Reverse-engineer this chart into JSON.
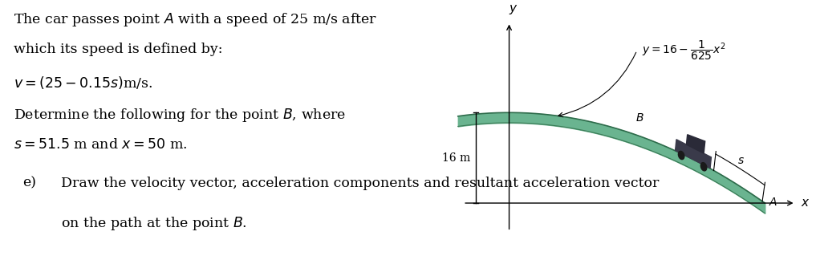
{
  "background_color": "#ffffff",
  "line1": "The car passes point $A$ with a speed of 25 m/s after",
  "line2": "which its speed is defined by:",
  "line3": "$v = (25 - 0.15s)$m/s.",
  "line4": "Determine the following for the point $B$, where",
  "line5": "$s = 51.5$ m and $x = 50$ m.",
  "part_e_label": "e)",
  "part_e_text_line1": "Draw the velocity vector, acceleration components and resultant acceleration vector",
  "part_e_text_line2": "on the path at the point $B$.",
  "y_label": "$y$",
  "x_label": "$x$",
  "s_label": "$s$",
  "B_label": "$B$",
  "A_label": "$A$",
  "height_label": "16 m",
  "road_top_color": "#6ab490",
  "road_edge_color": "#2d6b4a",
  "road_dark_color": "#3a7a55",
  "fontsize_text": 12.5,
  "fontsize_diagram": 10
}
